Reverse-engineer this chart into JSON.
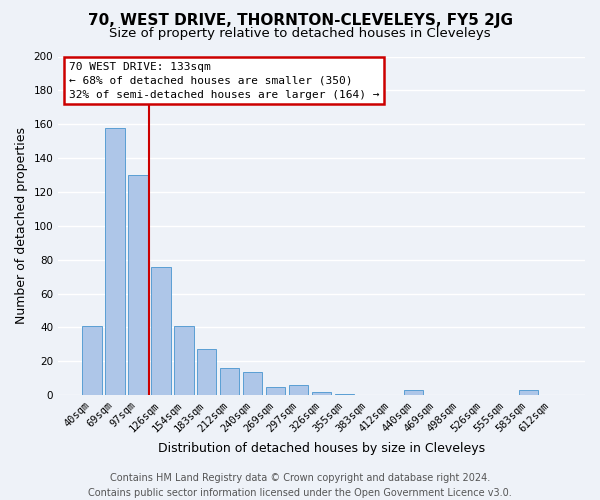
{
  "title": "70, WEST DRIVE, THORNTON-CLEVELEYS, FY5 2JG",
  "subtitle": "Size of property relative to detached houses in Cleveleys",
  "xlabel": "Distribution of detached houses by size in Cleveleys",
  "ylabel": "Number of detached properties",
  "bar_labels": [
    "40sqm",
    "69sqm",
    "97sqm",
    "126sqm",
    "154sqm",
    "183sqm",
    "212sqm",
    "240sqm",
    "269sqm",
    "297sqm",
    "326sqm",
    "355sqm",
    "383sqm",
    "412sqm",
    "440sqm",
    "469sqm",
    "498sqm",
    "526sqm",
    "555sqm",
    "583sqm",
    "612sqm"
  ],
  "bar_values": [
    41,
    158,
    130,
    76,
    41,
    27,
    16,
    14,
    5,
    6,
    2,
    1,
    0,
    0,
    3,
    0,
    0,
    0,
    0,
    3,
    0
  ],
  "bar_color": "#aec6e8",
  "bar_edge_color": "#5a9fd4",
  "vline_x": 2.5,
  "annotation_title": "70 WEST DRIVE: 133sqm",
  "annotation_line1": "← 68% of detached houses are smaller (350)",
  "annotation_line2": "32% of semi-detached houses are larger (164) →",
  "annotation_box_color": "#ffffff",
  "annotation_box_edge_color": "#cc0000",
  "vline_color": "#cc0000",
  "ylim": [
    0,
    200
  ],
  "yticks": [
    0,
    20,
    40,
    60,
    80,
    100,
    120,
    140,
    160,
    180,
    200
  ],
  "footer_line1": "Contains HM Land Registry data © Crown copyright and database right 2024.",
  "footer_line2": "Contains public sector information licensed under the Open Government Licence v3.0.",
  "bg_color": "#eef2f8",
  "grid_color": "#ffffff",
  "title_fontsize": 11,
  "subtitle_fontsize": 9.5,
  "axis_label_fontsize": 9,
  "tick_fontsize": 7.5,
  "footer_fontsize": 7
}
